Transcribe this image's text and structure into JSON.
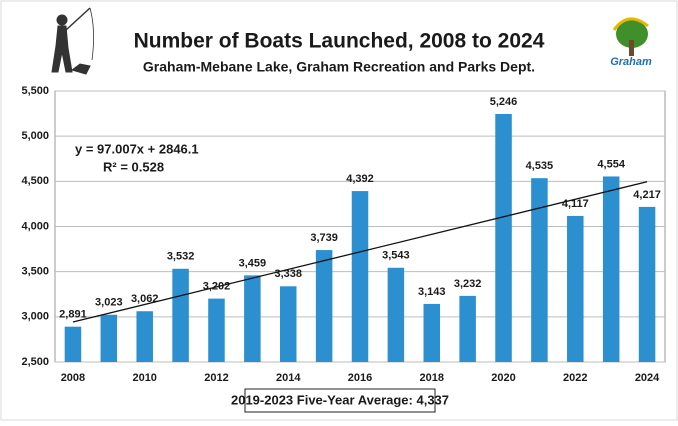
{
  "chart_data": {
    "type": "bar",
    "title": "Number of Boats Launched, 2008 to 2024",
    "subtitle": "Graham-Mebane Lake, Graham Recreation and Parks Dept.",
    "logo_text": "Graham",
    "categories": [
      "2008",
      null,
      "2010",
      null,
      "2012",
      null,
      "2014",
      null,
      "2016",
      null,
      "2018",
      null,
      "2020",
      null,
      "2022",
      null,
      "2024"
    ],
    "values": [
      2891,
      3023,
      3062,
      3532,
      3202,
      3459,
      3338,
      3739,
      4392,
      3543,
      3143,
      3232,
      5246,
      4535,
      4117,
      4554,
      4217
    ],
    "value_labels": [
      "2,891",
      "3,023",
      "3,062",
      "3,532",
      "3,202",
      "3,459",
      "3,338",
      "3,739",
      "4,392",
      "3,543",
      "3,143",
      "3,232",
      "5,246",
      "4,535",
      "4,117",
      "4,554",
      "4,217"
    ],
    "color": "#2b8fd0",
    "ylim": [
      2500,
      5500
    ],
    "yticks": [
      {
        "value": 2500,
        "label": "2,500"
      },
      {
        "value": 3000,
        "label": "3,000"
      },
      {
        "value": 3500,
        "label": "3,500"
      },
      {
        "value": 4000,
        "label": "4,000"
      },
      {
        "value": 4500,
        "label": "4,500"
      },
      {
        "value": 5000,
        "label": "5,000"
      },
      {
        "value": 5500,
        "label": "5,500"
      }
    ],
    "grid": true,
    "trendline": {
      "equation": "y = 97.007x + 2846.1",
      "r_squared_label": "R² = 0.528",
      "slope": 97.007,
      "intercept": 2846.1
    },
    "footer": "2019-2023 Five-Year Average: 4,337"
  }
}
